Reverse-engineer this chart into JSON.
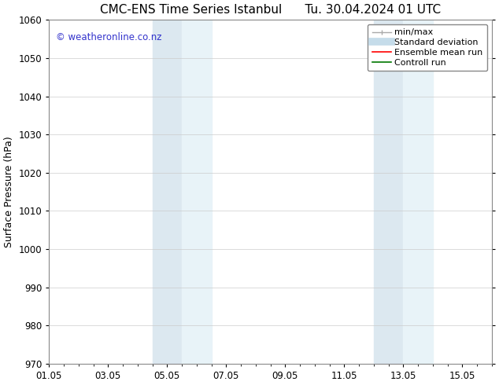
{
  "title_left": "CMC-ENS Time Series Istanbul",
  "title_right": "Tu. 30.04.2024 01 UTC",
  "ylabel": "Surface Pressure (hPa)",
  "ylim": [
    970,
    1060
  ],
  "yticks": [
    970,
    980,
    990,
    1000,
    1010,
    1020,
    1030,
    1040,
    1050,
    1060
  ],
  "xlim": [
    0,
    15
  ],
  "xtick_labels": [
    "01.05",
    "03.05",
    "05.05",
    "07.05",
    "09.05",
    "11.05",
    "13.05",
    "15.05"
  ],
  "xtick_positions": [
    0,
    2,
    4,
    6,
    8,
    10,
    12,
    14
  ],
  "shaded_regions": [
    {
      "start": 3.5,
      "end": 4.5,
      "color": "#dce8f0"
    },
    {
      "start": 4.5,
      "end": 5.5,
      "color": "#e8f3f8"
    },
    {
      "start": 11.0,
      "end": 12.0,
      "color": "#dce8f0"
    },
    {
      "start": 12.0,
      "end": 13.0,
      "color": "#e8f3f8"
    }
  ],
  "watermark_text": "© weatheronline.co.nz",
  "watermark_color": "#3333cc",
  "background_color": "#ffffff",
  "grid_color": "#cccccc",
  "spine_color": "#888888",
  "title_fontsize": 11,
  "axis_label_fontsize": 9,
  "tick_fontsize": 8.5,
  "watermark_fontsize": 8.5,
  "legend_fontsize": 8,
  "legend_entries": [
    {
      "label": "min/max",
      "color": "#aaaaaa"
    },
    {
      "label": "Standard deviation",
      "color": "#c5dcea"
    },
    {
      "label": "Ensemble mean run",
      "color": "#ff0000"
    },
    {
      "label": "Controll run",
      "color": "#007700"
    }
  ]
}
